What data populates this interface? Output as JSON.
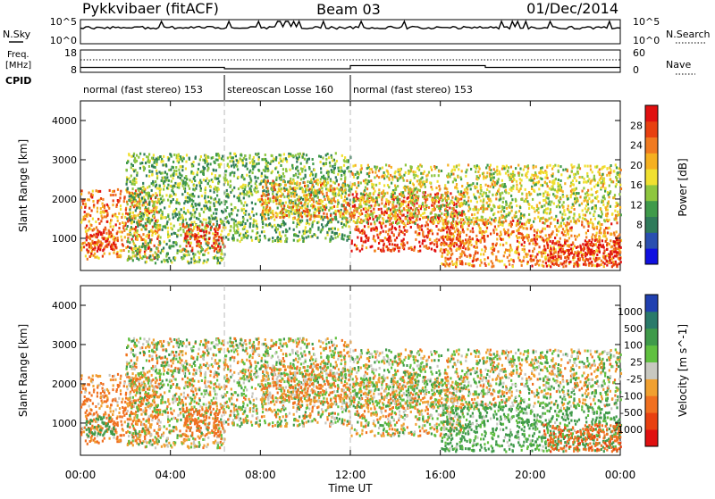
{
  "header": {
    "station": "Pykkvibaer (fitACF)",
    "beam": "Beam 03",
    "date": "01/Dec/2014"
  },
  "strip_labels": {
    "nsky": "N.Sky",
    "nsearch": "N.Search",
    "freq": "Freq.",
    "freq_unit": "[MHz]",
    "nave": "Nave",
    "cpid": "CPID"
  },
  "strip_ticks": {
    "noise_top": "10^5",
    "noise_bottom": "10^0",
    "freq_top": "18",
    "freq_bottom": "8",
    "nave_top": "60",
    "nave_bottom": "0"
  },
  "cpid_segments": [
    {
      "label": "normal (fast stereo) 153",
      "start_hour": 0,
      "end_hour": 6.4
    },
    {
      "label": "stereoscan Losse 160",
      "start_hour": 6.4,
      "end_hour": 12.0
    },
    {
      "label": "normal (fast stereo) 153",
      "start_hour": 12.0,
      "end_hour": 24.0
    }
  ],
  "time_ticks": [
    "00:00",
    "04:00",
    "08:00",
    "12:00",
    "16:00",
    "20:00",
    "00:00"
  ],
  "xlabel": "Time UT",
  "ylabel": "Slant Range [km]",
  "range_ticks": [
    "1000",
    "2000",
    "3000",
    "4000"
  ],
  "power_bar": {
    "label": "Power [dB]",
    "ticks": [
      "4",
      "8",
      "12",
      "16",
      "20",
      "24",
      "28"
    ],
    "colors": [
      "#1010e0",
      "#2a4fb0",
      "#2f7a5a",
      "#3f9a4a",
      "#8ec63f",
      "#f0e030",
      "#f5b020",
      "#f07a20",
      "#e84010",
      "#e01010"
    ]
  },
  "velocity_bar": {
    "label": "Velocity [m s^-1]",
    "ticks": [
      "1000",
      "500",
      "100",
      "25",
      "-25",
      "-100",
      "-500",
      "-1000"
    ],
    "colors": [
      "#2040b0",
      "#2a7a6a",
      "#3f9a4a",
      "#60c040",
      "#c8c8c0",
      "#f0a030",
      "#f07020",
      "#e84010",
      "#e01010"
    ]
  },
  "chart_data": {
    "type": "heatmap",
    "title": "Pykkvibaer (fitACF) Beam 03 01/Dec/2014",
    "x_range_hours": [
      0,
      24
    ],
    "y_range_km": [
      180,
      4500
    ],
    "power_db_range": [
      0,
      30
    ],
    "velocity_range": [
      -1000,
      1000
    ],
    "mode_changes_hours": [
      6.4,
      12.0
    ],
    "frequency_mhz": [
      {
        "start_hour": 0,
        "end_hour": 6.4,
        "value": 10.2
      },
      {
        "start_hour": 6.4,
        "end_hour": 12.0,
        "value": 9.6
      },
      {
        "start_hour": 12.0,
        "end_hour": 18.0,
        "value": 11.0
      },
      {
        "start_hour": 18.0,
        "end_hour": 24.0,
        "value": 10.2
      }
    ],
    "scatter_regions": [
      {
        "start_hour": 0.0,
        "end_hour": 3.5,
        "range_km": [
          500,
          2300
        ],
        "power_db": 22,
        "velocity": -150
      },
      {
        "start_hour": 0.2,
        "end_hour": 1.5,
        "range_km": [
          700,
          1200
        ],
        "power_db": 28,
        "velocity": 300
      },
      {
        "start_hour": 2.0,
        "end_hour": 6.4,
        "range_km": [
          400,
          3200
        ],
        "power_db": 12,
        "velocity": 0
      },
      {
        "start_hour": 4.5,
        "end_hour": 6.4,
        "range_km": [
          700,
          1400
        ],
        "power_db": 26,
        "velocity": -300
      },
      {
        "start_hour": 6.4,
        "end_hour": 12.0,
        "range_km": [
          950,
          3200
        ],
        "power_db": 12,
        "velocity": 0
      },
      {
        "start_hour": 8.0,
        "end_hour": 12.0,
        "range_km": [
          1500,
          2500
        ],
        "power_db": 20,
        "velocity": -80
      },
      {
        "start_hour": 12.0,
        "end_hour": 17.0,
        "range_km": [
          700,
          2200
        ],
        "power_db": 26,
        "velocity": -20
      },
      {
        "start_hour": 12.0,
        "end_hour": 24.0,
        "range_km": [
          1400,
          2900
        ],
        "power_db": 16,
        "velocity": 10
      },
      {
        "start_hour": 16.0,
        "end_hour": 24.0,
        "range_km": [
          300,
          1500
        ],
        "power_db": 22,
        "velocity": 150
      },
      {
        "start_hour": 20.5,
        "end_hour": 24.0,
        "range_km": [
          300,
          1000
        ],
        "power_db": 28,
        "velocity": -400
      }
    ]
  }
}
